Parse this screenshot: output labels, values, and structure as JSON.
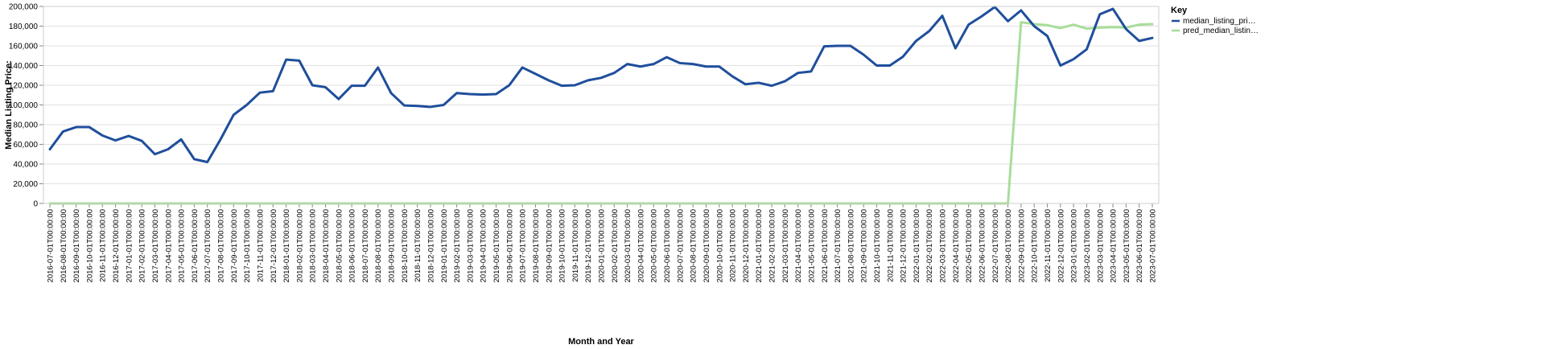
{
  "chart_data": {
    "type": "line",
    "xlabel": "Month and Year",
    "ylabel": "Median Listing Price:",
    "ylim": [
      0,
      200000
    ],
    "y_ticks": [
      "0",
      "20,000",
      "40,000",
      "60,000",
      "80,000",
      "100,000",
      "120,000",
      "140,000",
      "160,000",
      "180,000",
      "200,000"
    ],
    "grid": true,
    "legend_position": "top-right",
    "legend_title": "Key",
    "x": [
      "2016-07-01T00:00:00",
      "2016-08-01T00:00:00",
      "2016-09-01T00:00:00",
      "2016-10-01T00:00:00",
      "2016-11-01T00:00:00",
      "2016-12-01T00:00:00",
      "2017-01-01T00:00:00",
      "2017-02-01T00:00:00",
      "2017-03-01T00:00:00",
      "2017-04-01T00:00:00",
      "2017-05-01T00:00:00",
      "2017-06-01T00:00:00",
      "2017-07-01T00:00:00",
      "2017-08-01T00:00:00",
      "2017-09-01T00:00:00",
      "2017-10-01T00:00:00",
      "2017-11-01T00:00:00",
      "2017-12-01T00:00:00",
      "2018-01-01T00:00:00",
      "2018-02-01T00:00:00",
      "2018-03-01T00:00:00",
      "2018-04-01T00:00:00",
      "2018-05-01T00:00:00",
      "2018-06-01T00:00:00",
      "2018-07-01T00:00:00",
      "2018-08-01T00:00:00",
      "2018-09-01T00:00:00",
      "2018-10-01T00:00:00",
      "2018-11-01T00:00:00",
      "2018-12-01T00:00:00",
      "2019-01-01T00:00:00",
      "2019-02-01T00:00:00",
      "2019-03-01T00:00:00",
      "2019-04-01T00:00:00",
      "2019-05-01T00:00:00",
      "2019-06-01T00:00:00",
      "2019-07-01T00:00:00",
      "2019-08-01T00:00:00",
      "2019-09-01T00:00:00",
      "2019-10-01T00:00:00",
      "2019-11-01T00:00:00",
      "2019-12-01T00:00:00",
      "2020-01-01T00:00:00",
      "2020-02-01T00:00:00",
      "2020-03-01T00:00:00",
      "2020-04-01T00:00:00",
      "2020-05-01T00:00:00",
      "2020-06-01T00:00:00",
      "2020-07-01T00:00:00",
      "2020-08-01T00:00:00",
      "2020-09-01T00:00:00",
      "2020-10-01T00:00:00",
      "2020-11-01T00:00:00",
      "2020-12-01T00:00:00",
      "2021-01-01T00:00:00",
      "2021-02-01T00:00:00",
      "2021-03-01T00:00:00",
      "2021-04-01T00:00:00",
      "2021-05-01T00:00:00",
      "2021-06-01T00:00:00",
      "2021-07-01T00:00:00",
      "2021-08-01T00:00:00",
      "2021-09-01T00:00:00",
      "2021-10-01T00:00:00",
      "2021-11-01T00:00:00",
      "2021-12-01T00:00:00",
      "2022-01-01T00:00:00",
      "2022-02-01T00:00:00",
      "2022-03-01T00:00:00",
      "2022-04-01T00:00:00",
      "2022-05-01T00:00:00",
      "2022-06-01T00:00:00",
      "2022-07-01T00:00:00",
      "2022-08-01T00:00:00",
      "2022-09-01T00:00:00",
      "2022-10-01T00:00:00",
      "2022-11-01T00:00:00",
      "2022-12-01T00:00:00",
      "2023-01-01T00:00:00",
      "2023-02-01T00:00:00",
      "2023-03-01T00:00:00",
      "2023-04-01T00:00:00",
      "2023-05-01T00:00:00",
      "2023-06-01T00:00:00",
      "2023-07-01T00:00:00"
    ],
    "series": [
      {
        "name": "median_listing_pri…",
        "color": "#1f4e9c",
        "values": [
          55000,
          73000,
          77500,
          77500,
          69000,
          64000,
          68500,
          63500,
          50000,
          55000,
          65000,
          45000,
          42000,
          65000,
          90000,
          100000,
          112500,
          114000,
          146000,
          145000,
          120000,
          118000,
          106000,
          119500,
          119500,
          138000,
          112000,
          99500,
          99000,
          98000,
          100000,
          112000,
          111000,
          110500,
          111000,
          120000,
          138000,
          131500,
          125000,
          119500,
          120000,
          125000,
          127500,
          132500,
          141500,
          139000,
          141500,
          148500,
          142500,
          141500,
          139000,
          139000,
          129000,
          121000,
          122500,
          119500,
          124000,
          132500,
          134000,
          159500,
          160000,
          160000,
          151000,
          140000,
          140000,
          149000,
          165000,
          175000,
          190500,
          157500,
          181500,
          190000,
          199500,
          185000,
          196000,
          180000,
          170000,
          140000,
          146500,
          156500,
          192000,
          197500,
          177000,
          165000,
          168000
        ]
      },
      {
        "name": "pred_median_listin…",
        "color": "#a8dd9a",
        "values": [
          0,
          0,
          0,
          0,
          0,
          0,
          0,
          0,
          0,
          0,
          0,
          0,
          0,
          0,
          0,
          0,
          0,
          0,
          0,
          0,
          0,
          0,
          0,
          0,
          0,
          0,
          0,
          0,
          0,
          0,
          0,
          0,
          0,
          0,
          0,
          0,
          0,
          0,
          0,
          0,
          0,
          0,
          0,
          0,
          0,
          0,
          0,
          0,
          0,
          0,
          0,
          0,
          0,
          0,
          0,
          0,
          0,
          0,
          0,
          0,
          0,
          0,
          0,
          0,
          0,
          0,
          0,
          0,
          0,
          0,
          0,
          0,
          0,
          0,
          184000,
          182000,
          181000,
          178000,
          181500,
          177500,
          178500,
          179000,
          178500,
          181500,
          182000
        ]
      }
    ]
  }
}
